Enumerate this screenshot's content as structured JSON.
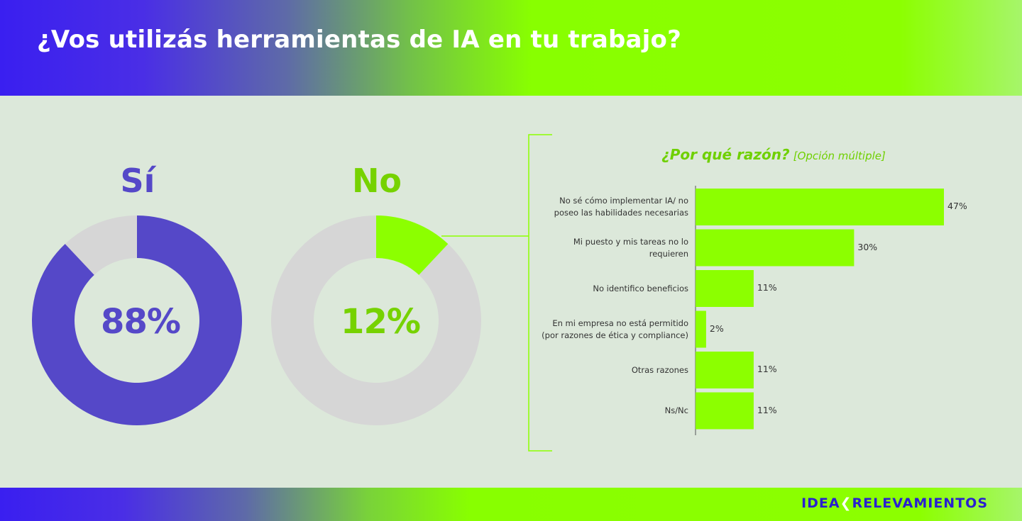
{
  "header": {
    "title": "¿Vos utilizás herramientas de IA en tu trabajo?",
    "gradient_start": "#3a1ff0",
    "gradient_end": "#8cff00"
  },
  "donuts": [
    {
      "label": "Sí",
      "value": 88,
      "display": "88%",
      "color": "#5548c8",
      "track": "#d6d6d6"
    },
    {
      "label": "No",
      "value": 12,
      "display": "12%",
      "color": "#8cff00",
      "track": "#d6d6d6"
    }
  ],
  "footer": {
    "logo_part1": "IDEA",
    "logo_part2": "RELEVAMIENTOS"
  },
  "chart_data": [
    {
      "type": "pie",
      "categories": [
        "Sí",
        "No"
      ],
      "values": [
        88,
        12
      ],
      "title": "¿Vos utilizás herramientas de IA en tu trabajo?"
    },
    {
      "type": "bar",
      "orientation": "horizontal",
      "title": "¿Por qué razón?",
      "subtitle": "[Opción múltiple]",
      "categories": [
        "No sé cómo implementar IA/ no poseo las habilidades necesarias",
        "Mi puesto y mis tareas no lo requieren",
        "No identifico beneficios",
        "En mi empresa no está permitido (por razones de ética y compliance)",
        "Otras razones",
        "Ns/Nc"
      ],
      "label_lines": [
        [
          "No sé cómo implementar IA/ no",
          "poseo las habilidades necesarias"
        ],
        [
          "Mi puesto y mis tareas no lo",
          "requieren"
        ],
        [
          "No identifico beneficios"
        ],
        [
          "En mi empresa no está permitido",
          "(por razones de ética y compliance)"
        ],
        [
          "Otras razones"
        ],
        [
          "Ns/Nc"
        ]
      ],
      "values": [
        47,
        30,
        11,
        2,
        11,
        11
      ],
      "value_labels": [
        "47%",
        "30%",
        "11%",
        "2%",
        "11%",
        "11%"
      ],
      "bar_color": "#8cff00",
      "xlim": [
        0,
        50
      ]
    }
  ]
}
